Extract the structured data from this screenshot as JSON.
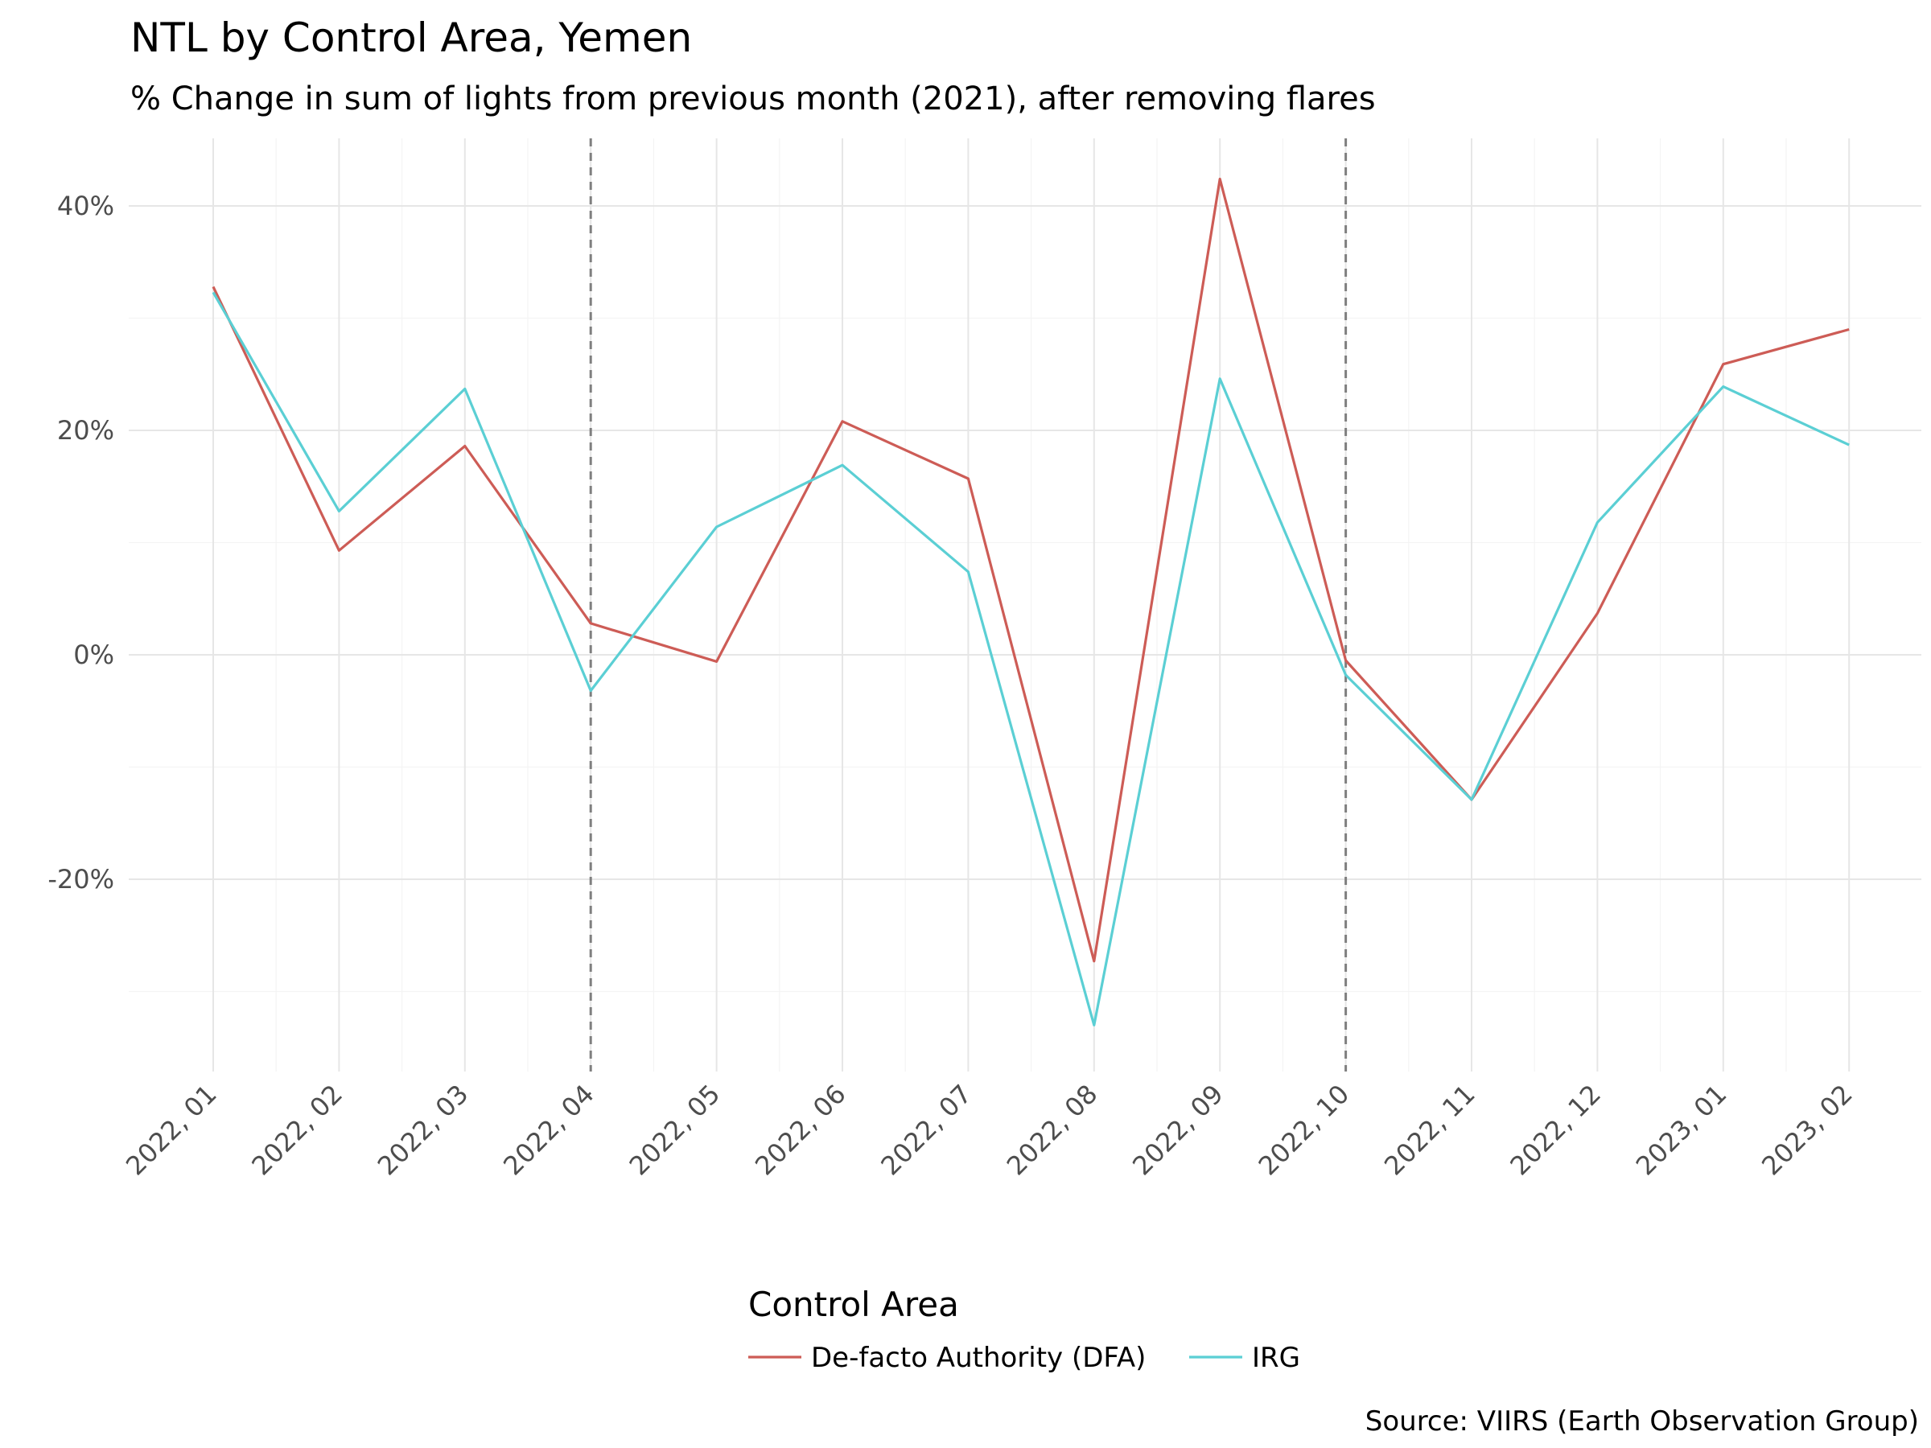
{
  "chart_data": {
    "type": "line",
    "title": "NTL by Control Area, Yemen",
    "subtitle": "% Change in sum of lights from previous month (2021), after removing flares",
    "caption": "Source: VIIRS (Earth Observation Group)",
    "xlabel": "",
    "ylabel": "",
    "categories": [
      "2022, 01",
      "2022, 02",
      "2022, 03",
      "2022, 04",
      "2022, 05",
      "2022, 06",
      "2022, 07",
      "2022, 08",
      "2022, 09",
      "2022, 10",
      "2022, 11",
      "2022, 12",
      "2023, 01",
      "2023, 02"
    ],
    "y_ticks": [
      -20,
      0,
      20,
      40
    ],
    "y_tick_labels": [
      "-20%",
      "0%",
      "20%",
      "40%"
    ],
    "ylim": [
      -37,
      46
    ],
    "vertical_lines": [
      "2022, 04",
      "2022, 10"
    ],
    "grid": true,
    "legend": {
      "title": "Control Area",
      "position": "bottom"
    },
    "series": [
      {
        "name": "De-facto Authority (DFA)",
        "color": "#cd5c56",
        "values": [
          32.8,
          9.3,
          18.6,
          2.8,
          -0.6,
          20.8,
          15.7,
          -27.3,
          42.4,
          -0.5,
          -12.9,
          3.7,
          25.9,
          29.0
        ]
      },
      {
        "name": "IRG",
        "color": "#5bcfd4",
        "values": [
          32.3,
          12.8,
          23.7,
          -3.2,
          11.4,
          16.9,
          7.4,
          -33.0,
          24.6,
          -1.8,
          -12.9,
          11.8,
          23.9,
          18.7
        ]
      }
    ]
  }
}
